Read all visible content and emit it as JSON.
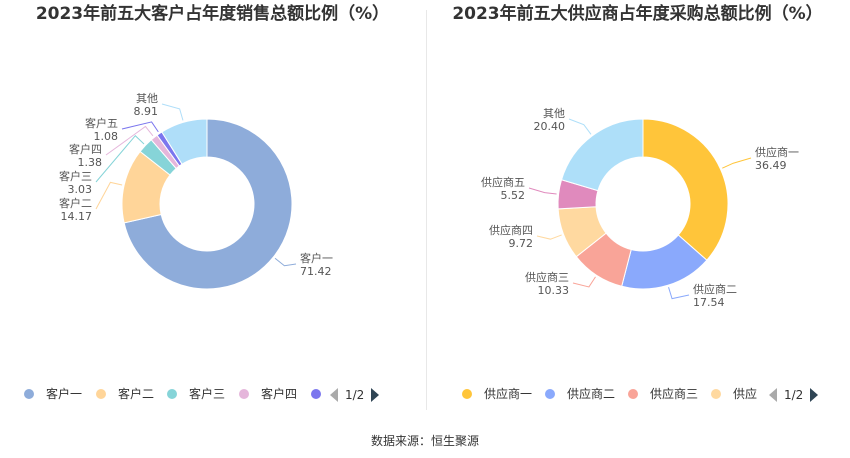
{
  "source": "数据来源：恒生聚源",
  "chart_data": [
    {
      "type": "pie",
      "variant": "donut",
      "title": "2023年前五大客户占年度销售总额比例（%）",
      "slices": [
        {
          "name": "客户一",
          "label": "客户一",
          "value": 71.42,
          "color": "#8EACDA"
        },
        {
          "name": "客户二",
          "label": "客户二",
          "value": 14.17,
          "color": "#FFD599"
        },
        {
          "name": "客户三",
          "label": "客户三",
          "value": 3.03,
          "color": "#86D4D8"
        },
        {
          "name": "客户四",
          "label": "客户四",
          "value": 1.38,
          "color": "#E5B6DB"
        },
        {
          "name": "客户五",
          "label": "客户五",
          "value": 1.08,
          "color": "#7B76EE"
        },
        {
          "name": "其他",
          "label": "其他",
          "value": 8.91,
          "color": "#AFDEF9"
        }
      ],
      "legend": {
        "items": [
          "客户一",
          "客户二",
          "客户三",
          "客户四"
        ],
        "page": "1/2",
        "position": "bottom"
      }
    },
    {
      "type": "pie",
      "variant": "donut",
      "title": "2023年前五大供应商占年度采购总额比例（%）",
      "slices": [
        {
          "name": "供应商一",
          "label": "供应商一",
          "value": 36.49,
          "color": "#FFC53A"
        },
        {
          "name": "供应商二",
          "label": "供应商二",
          "value": 17.54,
          "color": "#8AA9FC"
        },
        {
          "name": "供应商三",
          "label": "供应商三",
          "value": 10.33,
          "color": "#F9A498"
        },
        {
          "name": "供应商四",
          "label": "供应商四",
          "value": 9.72,
          "color": "#FFD9A0"
        },
        {
          "name": "供应商五",
          "label": "供应商五",
          "value": 5.52,
          "color": "#E08ABD"
        },
        {
          "name": "其他",
          "label": "其他",
          "value": 20.4,
          "color": "#AEDFF9"
        }
      ],
      "legend": {
        "items": [
          "供应商一",
          "供应商二",
          "供应商三",
          "供应"
        ],
        "page": "1/2",
        "position": "bottom"
      }
    }
  ]
}
